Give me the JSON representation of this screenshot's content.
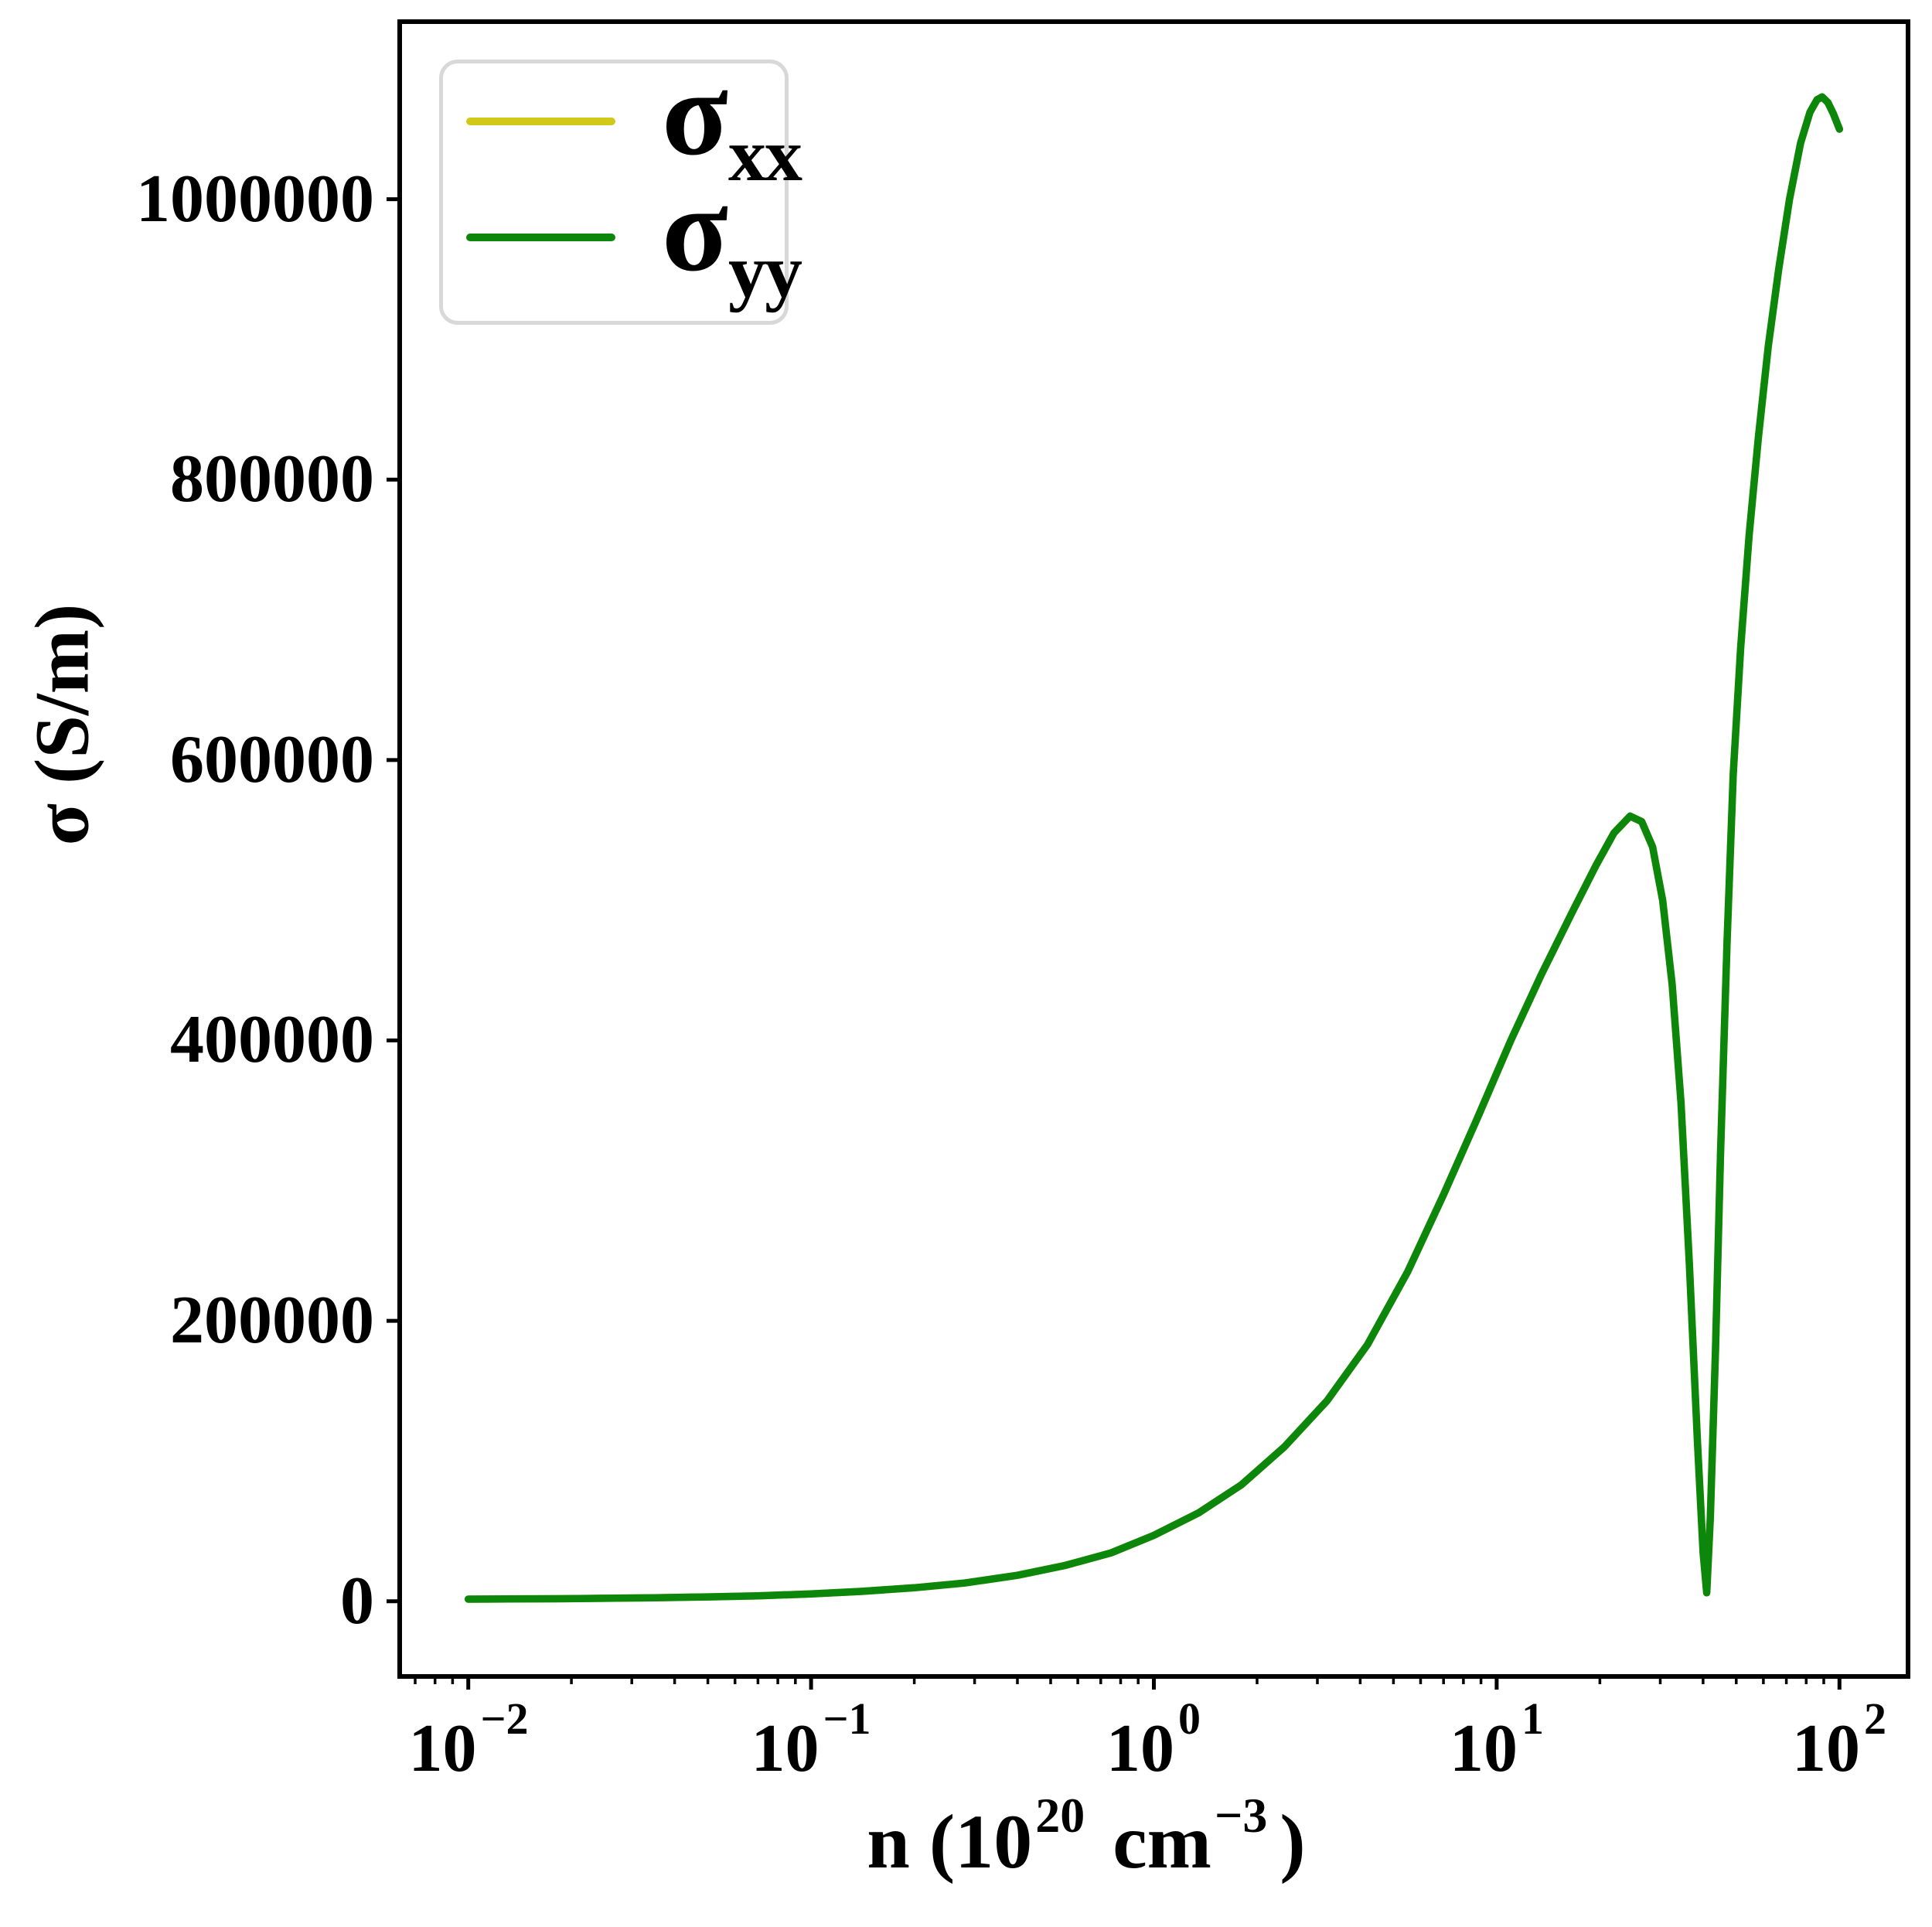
{
  "page": {
    "background": "#ffffff"
  },
  "axes": {
    "ylabel": "σ (S/m)",
    "xlabel": {
      "p1": "n (10",
      "sup1": "20",
      "p2": "cm",
      "sup2": "−3",
      "p3": ")"
    },
    "xticklabels": [
      {
        "base": "10",
        "exp": "−2"
      },
      {
        "base": "10",
        "exp": "−1"
      },
      {
        "base": "10",
        "exp": "0"
      },
      {
        "base": "10",
        "exp": "1"
      },
      {
        "base": "10",
        "exp": "2"
      }
    ],
    "yticklabels": [
      "0",
      "200000",
      "400000",
      "600000",
      "800000",
      "1000000"
    ],
    "spine_color": "#000000",
    "tick_color": "#000000"
  },
  "legend": {
    "border_color": "#d8d8d8",
    "background": "#ffffff",
    "entries": [
      {
        "base": "σ",
        "sub": "xx",
        "color": "#d2c818"
      },
      {
        "base": "σ",
        "sub": "yy",
        "color": "#0c870c"
      }
    ]
  },
  "chart_data": {
    "type": "line",
    "xscale": "log",
    "title": "",
    "xlabel": "n (10^20 cm^-3)",
    "ylabel": "σ (S/m)",
    "xlim": [
      0.00631,
      158.5
    ],
    "ylim": [
      -53650,
      1126650
    ],
    "xticks": [
      0.01,
      0.1,
      1,
      10,
      100
    ],
    "yticks": [
      0,
      200000,
      400000,
      600000,
      800000,
      1000000
    ],
    "grid": false,
    "legend_position": "upper left",
    "x": [
      0.01,
      0.013,
      0.018,
      0.025,
      0.035,
      0.05,
      0.07,
      0.1,
      0.14,
      0.2,
      0.28,
      0.4,
      0.55,
      0.75,
      1.0,
      1.35,
      1.8,
      2.4,
      3.2,
      4.2,
      5.5,
      7.0,
      8.8,
      11.0,
      13.5,
      16.5,
      19.5,
      22.0,
      24.5,
      26.5,
      28.5,
      30.5,
      32.5,
      34.5,
      36.5,
      38.5,
      40.0,
      41.0,
      42.0,
      43.5,
      45.0,
      47.0,
      49.0,
      51.5,
      54.5,
      58.0,
      62.0,
      66.5,
      71.5,
      77.0,
      82.0,
      86.0,
      89.0,
      92.5,
      96.0,
      100.0
    ],
    "series": [
      {
        "name": "σ_xx",
        "color": "#d2c818",
        "values": [
          1500,
          1600,
          1800,
          2100,
          2500,
          3100,
          3900,
          5200,
          7000,
          9600,
          13000,
          18500,
          25500,
          34500,
          47000,
          63000,
          83000,
          110000,
          143000,
          183000,
          235000,
          290000,
          345000,
          400000,
          447000,
          490000,
          525000,
          548000,
          560000,
          556000,
          538000,
          500000,
          440000,
          355000,
          240000,
          115000,
          35000,
          6000,
          60000,
          180000,
          320000,
          470000,
          590000,
          680000,
          760000,
          830000,
          895000,
          950000,
          1000000,
          1040000,
          1062000,
          1071000,
          1073000,
          1069000,
          1061000,
          1050000
        ]
      },
      {
        "name": "σ_yy",
        "color": "#0c870c",
        "values": [
          1500,
          1600,
          1800,
          2100,
          2500,
          3100,
          3900,
          5200,
          7000,
          9600,
          13000,
          18500,
          25500,
          34500,
          47000,
          63000,
          83000,
          110000,
          143000,
          183000,
          235000,
          290000,
          345000,
          400000,
          447000,
          490000,
          525000,
          548000,
          560000,
          556000,
          538000,
          500000,
          440000,
          355000,
          240000,
          115000,
          35000,
          6000,
          60000,
          180000,
          320000,
          470000,
          590000,
          680000,
          760000,
          830000,
          895000,
          950000,
          1000000,
          1040000,
          1062000,
          1071000,
          1073000,
          1069000,
          1061000,
          1050000
        ]
      }
    ]
  }
}
